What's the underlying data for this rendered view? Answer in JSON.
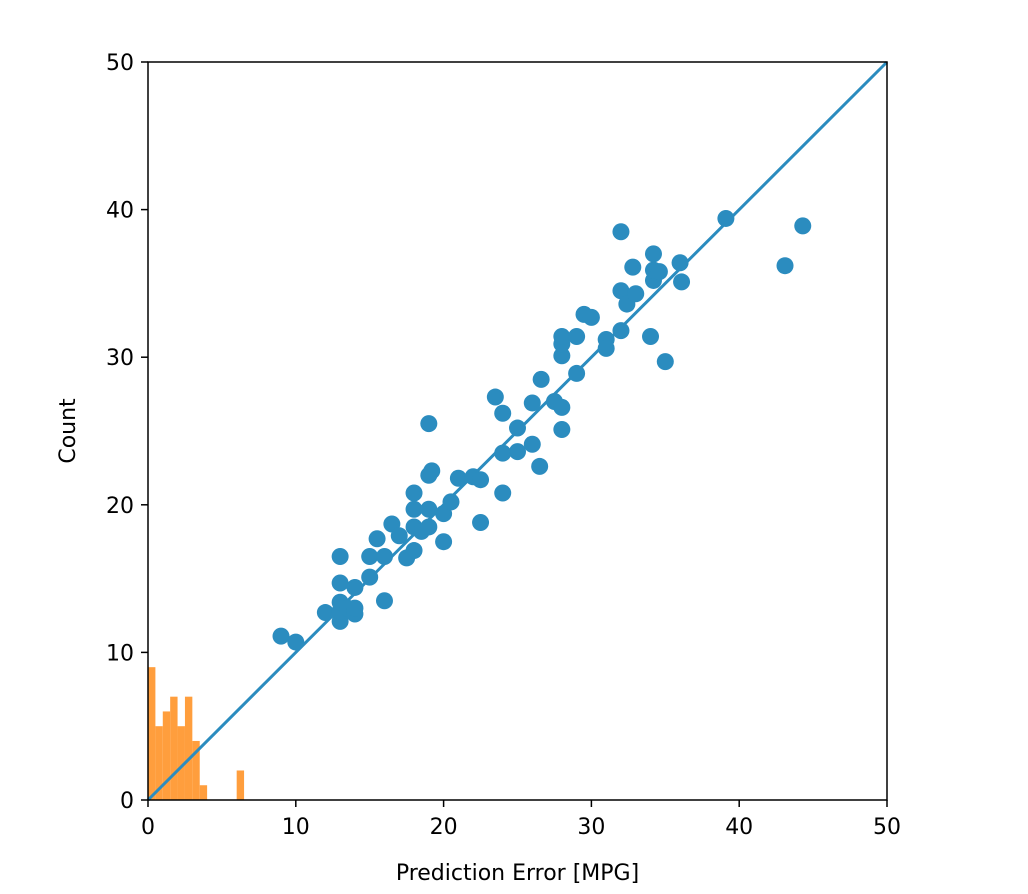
{
  "chart_data": {
    "type": "scatter",
    "title": "",
    "xlabel": "Prediction Error [MPG]",
    "ylabel": "Count",
    "xlim": [
      0,
      50
    ],
    "ylim": [
      0,
      50
    ],
    "xticks": [
      "0",
      "10",
      "20",
      "30",
      "40",
      "50"
    ],
    "yticks": [
      "0",
      "10",
      "20",
      "30",
      "40",
      "50"
    ],
    "grid": false,
    "legend": "none",
    "colors": {
      "scatter": "#2b8cbf",
      "line": "#2b8cbf",
      "hist": "#ff9933"
    },
    "reference_line": {
      "x": [
        0,
        50
      ],
      "y": [
        0,
        50
      ]
    },
    "scatter": [
      [
        9.0,
        11.1
      ],
      [
        10.0,
        10.7
      ],
      [
        12.0,
        12.7
      ],
      [
        13.0,
        12.1
      ],
      [
        13.0,
        12.8
      ],
      [
        13.0,
        13.4
      ],
      [
        13.5,
        13.0
      ],
      [
        14.0,
        12.6
      ],
      [
        14.0,
        13.0
      ],
      [
        13.0,
        14.7
      ],
      [
        14.0,
        14.4
      ],
      [
        15.0,
        15.1
      ],
      [
        13.0,
        16.5
      ],
      [
        15.0,
        16.5
      ],
      [
        15.5,
        17.7
      ],
      [
        16.0,
        16.5
      ],
      [
        16.0,
        13.5
      ],
      [
        16.5,
        18.7
      ],
      [
        17.0,
        17.9
      ],
      [
        17.5,
        16.4
      ],
      [
        18.0,
        16.9
      ],
      [
        18.0,
        18.5
      ],
      [
        18.0,
        19.7
      ],
      [
        18.0,
        20.8
      ],
      [
        18.5,
        18.2
      ],
      [
        19.0,
        18.5
      ],
      [
        19.0,
        19.7
      ],
      [
        19.0,
        22.0
      ],
      [
        19.2,
        22.3
      ],
      [
        19.0,
        25.5
      ],
      [
        20.0,
        17.5
      ],
      [
        20.0,
        19.4
      ],
      [
        20.5,
        20.2
      ],
      [
        21.0,
        21.8
      ],
      [
        22.0,
        21.9
      ],
      [
        22.5,
        21.7
      ],
      [
        22.5,
        18.8
      ],
      [
        23.5,
        27.3
      ],
      [
        24.0,
        26.2
      ],
      [
        24.0,
        23.5
      ],
      [
        24.0,
        20.8
      ],
      [
        25.0,
        23.6
      ],
      [
        25.0,
        25.2
      ],
      [
        26.0,
        26.9
      ],
      [
        26.0,
        24.1
      ],
      [
        26.5,
        22.6
      ],
      [
        26.6,
        28.5
      ],
      [
        27.5,
        27.0
      ],
      [
        28.0,
        26.6
      ],
      [
        28.0,
        25.1
      ],
      [
        28.0,
        30.1
      ],
      [
        28.0,
        30.9
      ],
      [
        28.0,
        31.4
      ],
      [
        29.0,
        31.4
      ],
      [
        29.0,
        28.9
      ],
      [
        29.5,
        32.9
      ],
      [
        30.0,
        32.7
      ],
      [
        31.0,
        31.2
      ],
      [
        31.0,
        30.6
      ],
      [
        32.0,
        31.8
      ],
      [
        32.0,
        34.5
      ],
      [
        32.0,
        38.5
      ],
      [
        32.4,
        33.6
      ],
      [
        32.8,
        36.1
      ],
      [
        33.0,
        34.3
      ],
      [
        34.0,
        31.4
      ],
      [
        34.2,
        35.2
      ],
      [
        34.2,
        35.9
      ],
      [
        34.6,
        35.8
      ],
      [
        34.2,
        37.0
      ],
      [
        35.0,
        29.7
      ],
      [
        36.0,
        36.4
      ],
      [
        36.1,
        35.1
      ],
      [
        39.1,
        39.4
      ],
      [
        43.1,
        36.2
      ],
      [
        44.3,
        38.9
      ]
    ],
    "histogram": {
      "edges": [
        0,
        0.5,
        1,
        1.5,
        2,
        2.5,
        3,
        3.5,
        4,
        4.5,
        5,
        5.5,
        6,
        6.5
      ],
      "counts": [
        9,
        5,
        6,
        7,
        5,
        7,
        4,
        1,
        0,
        0,
        0,
        0,
        2
      ]
    }
  }
}
